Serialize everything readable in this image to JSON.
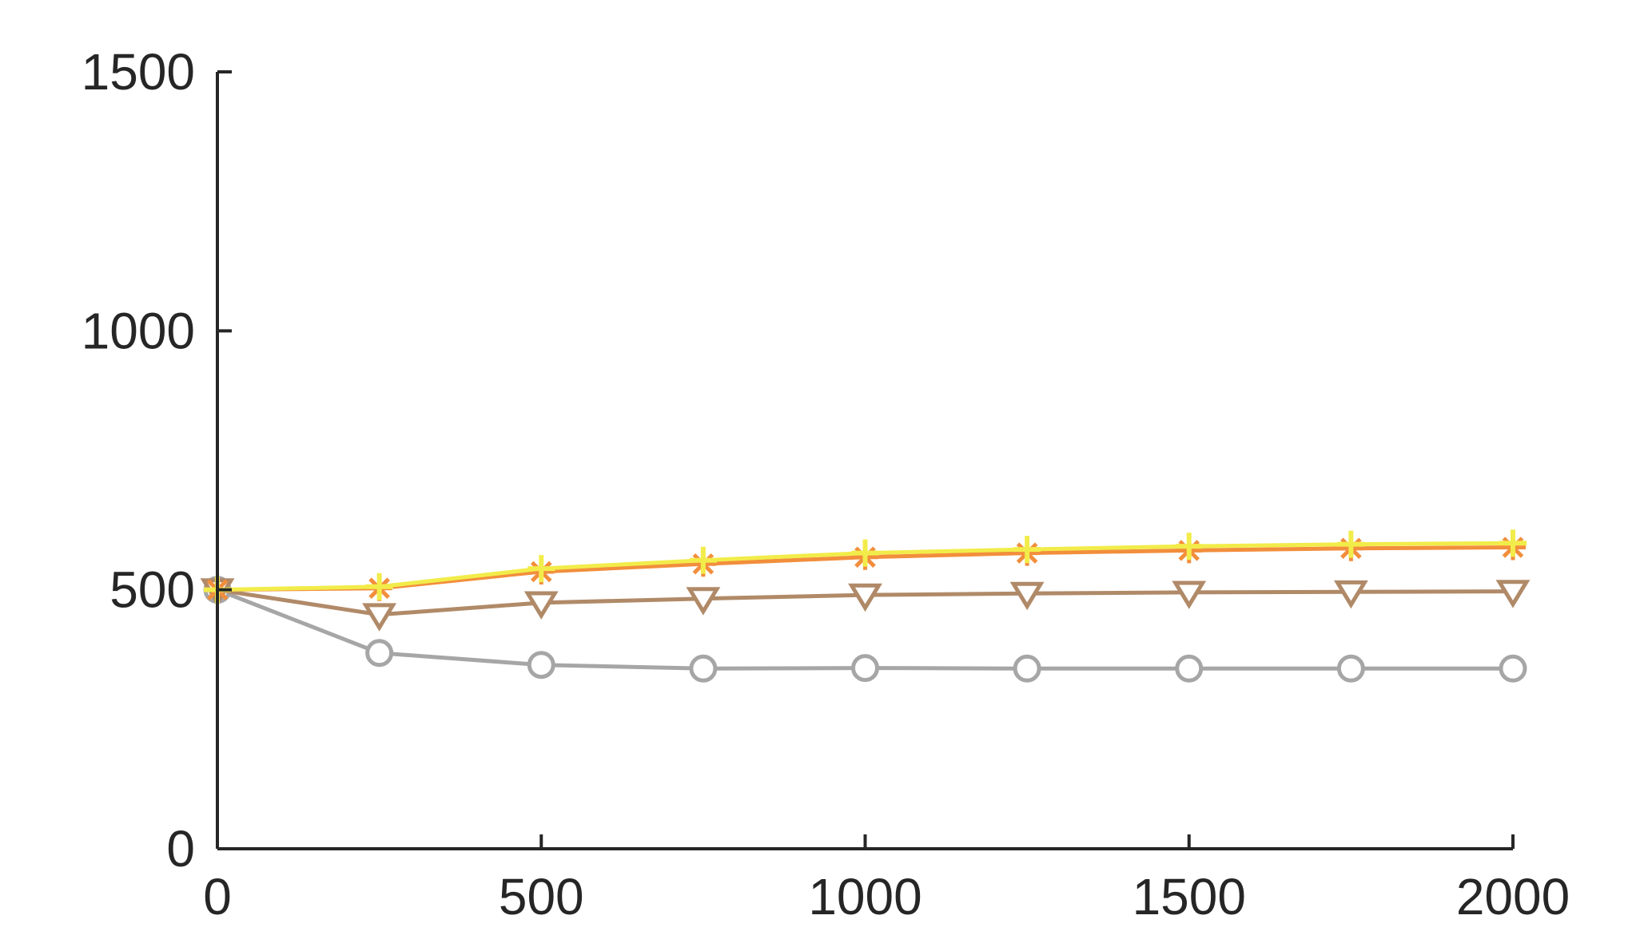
{
  "chart_data": {
    "type": "line",
    "title": "",
    "xlabel": "",
    "ylabel": "",
    "xlim": [
      0,
      2000
    ],
    "ylim": [
      0,
      1500
    ],
    "grid": false,
    "x_ticks": [
      0,
      500,
      1000,
      1500,
      2000
    ],
    "x_tick_labels": [
      "0",
      "500",
      "1000",
      "1500",
      "2000"
    ],
    "y_ticks": [
      0,
      500,
      1000,
      1500
    ],
    "y_tick_labels": [
      "0",
      "500",
      "1000",
      "1500"
    ],
    "x": [
      0,
      250,
      500,
      750,
      1000,
      1250,
      1500,
      1750,
      2000
    ],
    "series": [
      {
        "key": "gray",
        "marker": "circle",
        "color": "#a6a6a6",
        "values": [
          500,
          378,
          355,
          348,
          349,
          348,
          348,
          348,
          348
        ]
      },
      {
        "key": "brown",
        "marker": "triangle-down",
        "color": "#b08a68",
        "values": [
          500,
          452,
          475,
          483,
          490,
          493,
          495,
          496,
          497
        ]
      },
      {
        "key": "orange",
        "marker": "asterisk",
        "color": "#f28e3c",
        "values": [
          500,
          503,
          535,
          550,
          563,
          571,
          576,
          580,
          582
        ]
      },
      {
        "key": "yellow",
        "marker": "plus",
        "color": "#f2ec4a",
        "values": [
          500,
          506,
          541,
          557,
          571,
          578,
          584,
          588,
          590
        ]
      }
    ]
  }
}
